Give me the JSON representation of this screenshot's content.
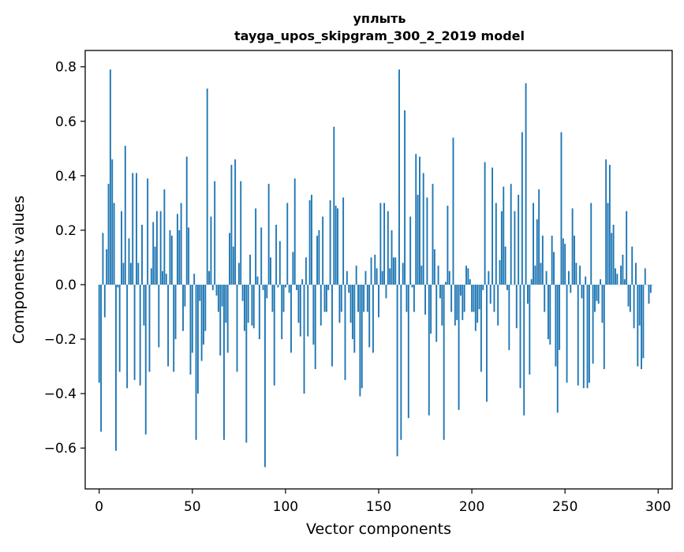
{
  "chart_data": {
    "type": "bar",
    "title": "уплыть",
    "subtitle": "tayga_upos_skipgram_300_2_2019 model",
    "xlabel": "Vector components",
    "ylabel": "Components values",
    "xlim": [
      -7.5,
      307.5
    ],
    "ylim": [
      -0.75,
      0.86
    ],
    "xticks": [
      0,
      50,
      100,
      150,
      200,
      250,
      300
    ],
    "xtick_labels": [
      "0",
      "50",
      "100",
      "150",
      "200",
      "250",
      "300"
    ],
    "yticks": [
      -0.6,
      -0.4,
      -0.2,
      0.0,
      0.2,
      0.4,
      0.6,
      0.8
    ],
    "ytick_labels": [
      "−0.6",
      "−0.4",
      "−0.2",
      "0.0",
      "0.2",
      "0.4",
      "0.6",
      "0.8"
    ],
    "grid": false,
    "bar_color": "#1f77b4",
    "values": [
      -0.36,
      -0.54,
      0.19,
      -0.12,
      0.13,
      0.37,
      0.79,
      0.46,
      0.3,
      -0.61,
      -0.01,
      -0.32,
      0.27,
      0.08,
      0.51,
      -0.38,
      0.17,
      0.08,
      0.41,
      -0.35,
      0.41,
      0.08,
      -0.37,
      0.22,
      -0.15,
      -0.55,
      0.39,
      -0.32,
      0.06,
      0.23,
      0.14,
      0.27,
      -0.23,
      0.27,
      0.05,
      0.35,
      0.04,
      -0.3,
      0.2,
      0.18,
      -0.32,
      -0.2,
      0.26,
      0.2,
      0.3,
      -0.17,
      -0.08,
      0.47,
      0.21,
      -0.33,
      -0.25,
      0.04,
      -0.57,
      -0.4,
      -0.06,
      -0.28,
      -0.22,
      -0.17,
      0.72,
      0.05,
      0.25,
      -0.02,
      0.38,
      -0.04,
      -0.1,
      -0.26,
      -0.08,
      -0.57,
      -0.14,
      -0.25,
      0.19,
      0.44,
      0.14,
      0.46,
      -0.32,
      0.08,
      0.38,
      -0.06,
      -0.17,
      -0.58,
      -0.14,
      0.11,
      -0.15,
      -0.16,
      0.28,
      0.03,
      -0.2,
      0.21,
      -0.02,
      -0.67,
      -0.05,
      0.37,
      0.1,
      -0.1,
      -0.37,
      0.22,
      -0.01,
      0.16,
      -0.2,
      -0.1,
      -0.01,
      0.3,
      -0.03,
      -0.25,
      0.12,
      0.39,
      -0.02,
      -0.14,
      -0.19,
      0.02,
      -0.4,
      0.1,
      -0.19,
      0.31,
      0.33,
      -0.22,
      -0.31,
      0.18,
      0.2,
      -0.15,
      0.25,
      -0.1,
      -0.1,
      -0.02,
      0.31,
      -0.3,
      0.58,
      0.29,
      0.28,
      -0.14,
      -0.1,
      0.32,
      -0.35,
      0.05,
      -0.03,
      -0.14,
      -0.2,
      -0.25,
      0.07,
      -0.1,
      -0.41,
      -0.38,
      -0.1,
      0.05,
      -0.1,
      -0.23,
      0.1,
      -0.25,
      0.11,
      0.06,
      -0.12,
      0.3,
      0.05,
      0.3,
      -0.05,
      0.27,
      0.06,
      0.2,
      0.1,
      0.1,
      -0.63,
      0.79,
      -0.57,
      0.08,
      0.64,
      -0.1,
      -0.49,
      0.25,
      -0.01,
      -0.1,
      0.48,
      0.33,
      0.47,
      0.07,
      0.41,
      -0.11,
      0.32,
      -0.48,
      -0.18,
      0.37,
      0.13,
      -0.21,
      0.07,
      -0.05,
      -0.15,
      -0.57,
      0.01,
      0.29,
      0.05,
      -0.1,
      0.54,
      -0.15,
      -0.13,
      -0.46,
      -0.04,
      -0.13,
      -0.1,
      0.07,
      0.06,
      0.02,
      -0.1,
      -0.1,
      -0.17,
      -0.14,
      -0.09,
      -0.32,
      -0.02,
      0.45,
      -0.43,
      0.05,
      -0.07,
      0.43,
      -0.1,
      0.3,
      -0.15,
      0.09,
      0.27,
      0.36,
      0.14,
      -0.02,
      -0.24,
      0.37,
      0.0,
      0.27,
      -0.16,
      0.33,
      -0.38,
      0.56,
      -0.48,
      0.74,
      -0.07,
      -0.33,
      0.02,
      0.3,
      0.07,
      0.24,
      0.35,
      0.08,
      0.18,
      -0.1,
      0.05,
      -0.2,
      -0.22,
      0.18,
      0.12,
      -0.3,
      -0.47,
      -0.24,
      0.56,
      0.17,
      0.15,
      -0.36,
      0.05,
      -0.03,
      0.28,
      0.18,
      0.08,
      -0.37,
      0.07,
      -0.05,
      -0.38,
      0.03,
      -0.38,
      -0.36,
      0.3,
      -0.29,
      -0.1,
      -0.06,
      -0.07,
      0.02,
      -0.14,
      -0.31,
      0.46,
      0.3,
      0.44,
      0.19,
      0.22,
      0.06,
      0.04,
      0.0,
      0.07,
      0.11,
      0.02,
      0.27,
      -0.08,
      -0.1,
      0.14,
      -0.16,
      0.08,
      -0.3,
      -0.15,
      -0.31,
      -0.27,
      0.06,
      0.0,
      -0.07,
      -0.03,
      0.0
    ]
  }
}
